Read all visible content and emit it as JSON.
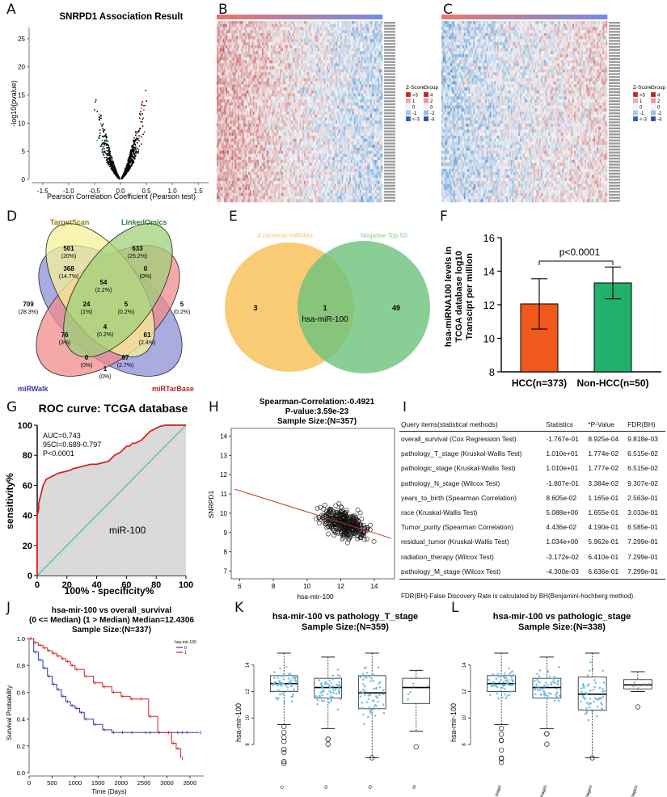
{
  "panel_labels": [
    "A",
    "B",
    "C",
    "D",
    "E",
    "F",
    "G",
    "H",
    "I",
    "J",
    "K",
    "L"
  ],
  "chart_data": [
    {
      "id": "A",
      "type": "scatter",
      "title": "SNRPD1 Association Result",
      "xlabel": "Pearson Correlation Coefficient (Pearson test)",
      "ylabel": "-log10(pvalue)",
      "xlim": [
        -1.7,
        1.7
      ],
      "ylim": [
        0,
        27
      ],
      "xticks": [
        "-1.5",
        "-1.0",
        "-0.5",
        "0.0",
        "0.5",
        "1.0",
        "1.5"
      ],
      "yticks": [
        "0",
        "5",
        "10",
        "15",
        "20",
        "25"
      ],
      "colors": {
        "negative": "#1e8a3a",
        "positive": "#d42020",
        "ns": "#000000"
      }
    },
    {
      "id": "B",
      "type": "heatmap",
      "legend_zscore_title": "Z-Score",
      "legend_group_title": "Group",
      "zscore_levels": [
        ">3",
        "1",
        "0",
        "-1",
        "<-3"
      ],
      "group_levels": [
        "4",
        "2",
        "0",
        "-2",
        "-4"
      ],
      "colors": {
        "high": "#c0282d",
        "low": "#2a63a8",
        "mid": "#f2f2f2"
      }
    },
    {
      "id": "C",
      "type": "heatmap",
      "legend_zscore_title": "Z-Score",
      "legend_group_title": "Group",
      "zscore_levels": [
        ">3",
        "1",
        "0",
        "-1",
        "<-3"
      ],
      "group_levels": [
        "4",
        "2",
        "0",
        "-2",
        "-4"
      ]
    },
    {
      "id": "D",
      "type": "venn",
      "sets": [
        "TargetScan",
        "LinkedOmics",
        "miRWalk",
        "miRTarBase"
      ],
      "set_colors": [
        "#f6f19a",
        "#9fd07a",
        "#8e8fd6",
        "#f08b8b"
      ],
      "label_colors": [
        "#8a7d10",
        "#2f7d2f",
        "#3a3aa8",
        "#c02020"
      ],
      "regions": [
        {
          "count": "501",
          "pct": "(20%)"
        },
        {
          "count": "633",
          "pct": "(25.2%)"
        },
        {
          "count": "709",
          "pct": "(28.3%)"
        },
        {
          "count": "5",
          "pct": "(0.2%)"
        },
        {
          "count": "368",
          "pct": "(14.7%)"
        },
        {
          "count": "54",
          "pct": "(2.2%)"
        },
        {
          "count": "0",
          "pct": "(0%)"
        },
        {
          "count": "24",
          "pct": "(1%)"
        },
        {
          "count": "5",
          "pct": "(0.2%)"
        },
        {
          "count": "76",
          "pct": "(3%)"
        },
        {
          "count": "4",
          "pct": "(0.2%)"
        },
        {
          "count": "61",
          "pct": "(2.4%)"
        },
        {
          "count": "0",
          "pct": "(0%)"
        },
        {
          "count": "67",
          "pct": "(2.7%)"
        },
        {
          "count": "1",
          "pct": "(0%)"
        }
      ]
    },
    {
      "id": "E",
      "type": "venn",
      "sets": [
        "4 common miRNAs",
        "Negative Top 50"
      ],
      "left_only": "3",
      "overlap": "1",
      "overlap_label": "hsa-miR-100",
      "right_only": "49"
    },
    {
      "id": "F",
      "type": "bar",
      "ylabel": "hsa-miRNA100 levels in TCGA database log10 Transcipt per million",
      "ylabel_lines": [
        "hsa-miRNA100 levels in",
        "TCGA database log10",
        "Transcipt per million"
      ],
      "categories": [
        "HCC(n=373)",
        "Non-HCC(n=50)"
      ],
      "values": [
        12.05,
        13.3
      ],
      "errors": [
        1.5,
        0.95
      ],
      "colors": [
        "#f0581c",
        "#21b16b"
      ],
      "ylim": [
        8,
        16
      ],
      "yticks": [
        "8",
        "10",
        "12",
        "14",
        "16"
      ],
      "annotation": "p<0.0001"
    },
    {
      "id": "G",
      "type": "line",
      "title": "ROC curve: TCGA database",
      "xlabel": "100% - specificity%",
      "ylabel": "sensitivity%",
      "xlim": [
        0,
        100
      ],
      "ylim": [
        0,
        100
      ],
      "xticks": [
        "0",
        "20",
        "40",
        "60",
        "80",
        "100"
      ],
      "yticks": [
        "0",
        "20",
        "40",
        "60",
        "80",
        "100"
      ],
      "stats": [
        "AUC=0.743",
        "95CI=0.689-0.797",
        "P<0.0001"
      ],
      "curve_label": "miR-100",
      "x": [
        0,
        0,
        1,
        1,
        2,
        3,
        4,
        5,
        6,
        8,
        10,
        12,
        14,
        18,
        22,
        24,
        28,
        32,
        36,
        40,
        44,
        48,
        50,
        52,
        56,
        58,
        60,
        62,
        64,
        66,
        68,
        70,
        72,
        74,
        76,
        78,
        82,
        86,
        90,
        94,
        100
      ],
      "y": [
        0,
        40,
        44,
        48,
        52,
        56,
        60,
        62,
        64,
        65,
        66,
        67,
        68,
        69,
        70,
        71,
        72,
        73,
        74,
        74,
        75,
        76,
        78,
        80,
        82,
        84,
        86,
        86,
        88,
        88,
        89,
        90,
        92,
        94,
        96,
        97,
        99,
        100,
        100,
        100,
        100
      ]
    },
    {
      "id": "H",
      "type": "scatter",
      "title_lines": [
        "Spearman-Correlation:-0.4921",
        "P-value:3.59e-23",
        "Sample Size:(N=357)"
      ],
      "xlabel": "hsa-mir-100",
      "ylabel": "SNRPD1",
      "xlim": [
        5.5,
        15.2
      ],
      "ylim": [
        6.6,
        14.4
      ],
      "xticks": [
        "6",
        "8",
        "10",
        "12",
        "14"
      ],
      "yticks": [
        "7",
        "8",
        "9",
        "10",
        "11",
        "12",
        "13",
        "14"
      ],
      "fit": [
        [
          5.7,
          11.25
        ],
        [
          15.0,
          8.7
        ]
      ]
    },
    {
      "id": "I",
      "type": "table",
      "columns": [
        "Query items(statistical methods)",
        "Statistics",
        "*P-Value",
        "FDR(BH)"
      ],
      "rows": [
        [
          "overall_survival (Cox Regression Test)",
          "-1.767e-01",
          "8.925e-04",
          "9.818e-03"
        ],
        [
          "pathology_T_stage (Kruskal-Wallis Test)",
          "1.010e+01",
          "1.774e-02",
          "6.515e-02"
        ],
        [
          "pathologic_stage (Kruskal-Wallis Test)",
          "1.010e+01",
          "1.777e-02",
          "6.515e-02"
        ],
        [
          "pathology_N_stage (Wilcox Test)",
          "-1.807e-01",
          "3.384e-02",
          "9.307e-02"
        ],
        [
          "years_to_birth (Spearman Correlation)",
          "8.605e-02",
          "1.165e-01",
          "2.563e-01"
        ],
        [
          "race (Kruskal-Wallis Test)",
          "5.088e+00",
          "1.655e-01",
          "3.033e-01"
        ],
        [
          "Tumor_purity (Spearman Correlation)",
          "4.436e-02",
          "4.190e-01",
          "6.585e-01"
        ],
        [
          "residual_tumor (Kruskal-Wallis Test)",
          "1.034e+00",
          "5.962e-01",
          "7.299e-01"
        ],
        [
          "radiation_therapy (Wilcox Test)",
          "-3.172e-02",
          "6.410e-01",
          "7.299e-01"
        ],
        [
          "pathology_M_stage (Wilcox Test)",
          "-4.300e-03",
          "6.636e-01",
          "7.299e-01"
        ]
      ],
      "footnote": "FDR(BH)-False Discovery Rate is calculated by BH(Benjamini-hochberg method)."
    },
    {
      "id": "J",
      "type": "line",
      "title_lines": [
        "hsa-mir-100 vs overall_survival",
        "(0 <= Median) (1 > Median) Median=12.4306",
        "Sample Size:(N=337)"
      ],
      "xlabel": "Time (Days)",
      "ylabel": "Survival Probability",
      "legend_title": "hsa-mir-100",
      "legend": [
        "0",
        "1"
      ],
      "xlim": [
        0,
        3800
      ],
      "ylim": [
        0,
        1
      ],
      "xticks": [
        "0",
        "500",
        "1000",
        "1500",
        "2000",
        "2500",
        "3000",
        "3500"
      ],
      "yticks": [
        "0.0",
        "0.2",
        "0.4",
        "0.6",
        "0.8",
        "1.0"
      ],
      "series": [
        {
          "name": "0",
          "color": "#2f3aa8",
          "x": [
            0,
            100,
            200,
            300,
            400,
            500,
            600,
            700,
            800,
            900,
            1000,
            1100,
            1200,
            1400,
            1600,
            1800,
            2000,
            2200,
            2500,
            2600,
            3200,
            3300,
            3400,
            3700
          ],
          "y": [
            1,
            0.9,
            0.84,
            0.78,
            0.72,
            0.66,
            0.62,
            0.57,
            0.53,
            0.5,
            0.48,
            0.45,
            0.4,
            0.36,
            0.32,
            0.3,
            0.3,
            0.3,
            0.3,
            0.3,
            0.3,
            0.3,
            0.3,
            0.3
          ]
        },
        {
          "name": "1",
          "color": "#d62020",
          "x": [
            0,
            100,
            200,
            300,
            400,
            500,
            600,
            700,
            800,
            900,
            1000,
            1200,
            1400,
            1600,
            1800,
            2000,
            2200,
            2400,
            2600,
            2800,
            3000,
            3100,
            3200,
            3300
          ],
          "y": [
            1,
            0.97,
            0.95,
            0.93,
            0.91,
            0.89,
            0.87,
            0.85,
            0.83,
            0.8,
            0.77,
            0.72,
            0.67,
            0.64,
            0.6,
            0.57,
            0.55,
            0.55,
            0.42,
            0.3,
            0.3,
            0.22,
            0.18,
            0.11
          ]
        }
      ]
    },
    {
      "id": "K",
      "type": "scatter",
      "title_lines": [
        "hsa-mir-100 vs pathology_T_stage",
        "Sample Size:(N=359)"
      ],
      "ylabel": "hsa-mir-100",
      "categories": [
        "t1",
        "t2",
        "t3",
        "t4"
      ],
      "ylim": [
        5.5,
        16
      ],
      "yticks": [
        "8",
        "10",
        "12",
        "14"
      ],
      "boxes": [
        {
          "min": 9.5,
          "q1": 12.0,
          "med": 12.6,
          "q3": 13.2,
          "max": 14.9
        },
        {
          "min": 9.2,
          "q1": 11.5,
          "med": 12.3,
          "q3": 13.0,
          "max": 14.6
        },
        {
          "min": 7.0,
          "q1": 10.7,
          "med": 11.9,
          "q3": 13.2,
          "max": 14.9
        },
        {
          "min": 9.0,
          "q1": 11.1,
          "med": 12.3,
          "q3": 13.0,
          "max": 13.6
        }
      ]
    },
    {
      "id": "L",
      "type": "scatter",
      "title_lines": [
        "hsa-mir-100 vs pathologic_stage",
        "Sample Size:(N=338)"
      ],
      "ylabel": "hsa-mir-100",
      "categories": [
        "stagei",
        "stageii",
        "stageiii",
        "stageiv"
      ],
      "ylim": [
        5.5,
        16
      ],
      "yticks": [
        "8",
        "10",
        "12",
        "14"
      ],
      "boxes": [
        {
          "min": 9.5,
          "q1": 12.0,
          "med": 12.6,
          "q3": 13.2,
          "max": 14.9
        },
        {
          "min": 9.2,
          "q1": 11.5,
          "med": 12.3,
          "q3": 13.0,
          "max": 14.6
        },
        {
          "min": 7.0,
          "q1": 10.6,
          "med": 11.8,
          "q3": 13.1,
          "max": 14.9
        },
        {
          "min": 12.0,
          "q1": 12.2,
          "med": 12.5,
          "q3": 12.9,
          "max": 13.5
        }
      ]
    }
  ]
}
